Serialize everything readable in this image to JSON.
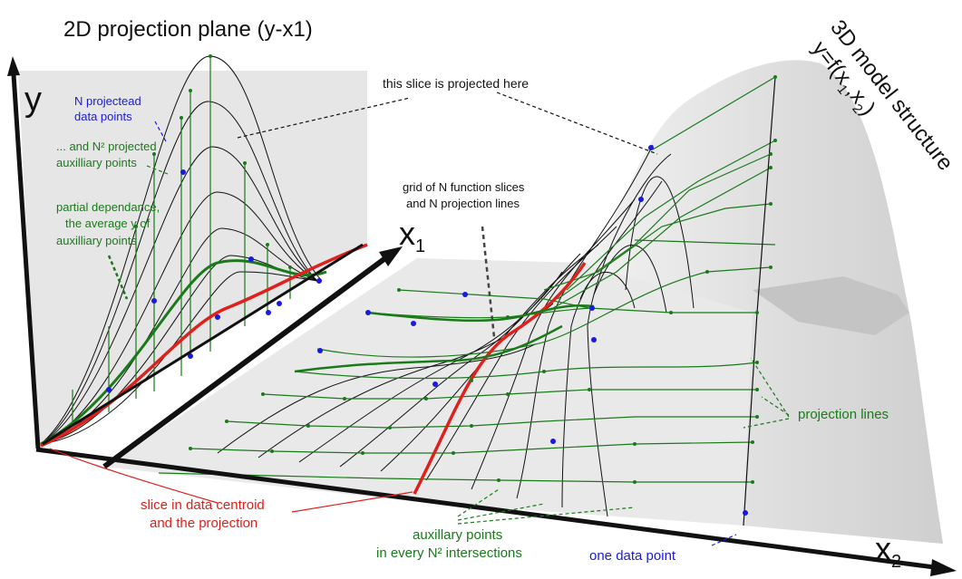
{
  "diagram": {
    "title_left": "2D projection plane (y-x1)",
    "title_right_line1": "3D model structure",
    "title_right_line2": "y=f(x₁,x₂)",
    "axis_y": "y",
    "axis_x1": "x",
    "axis_x1_sub": "1",
    "axis_x2": "x",
    "axis_x2_sub": "2",
    "notes": {
      "slice_projected": "this slice is projected here",
      "grid_line1": "grid of N function slices",
      "grid_line2": "and N projection lines",
      "n_points_line1": "N projectead",
      "n_points_line2": "data points",
      "aux_line1": "... and N² projected",
      "aux_line2": "auxilliary points",
      "pd_line1": "partial dependance,",
      "pd_line2": "the average y of",
      "pd_line3": "auxilliary points",
      "projection_lines": "projection lines",
      "slice_centroid_line1": "slice in data centroid",
      "slice_centroid_line2": "and the projection",
      "aux_every_line1": "auxillary points",
      "aux_every_line2": "in every N² intersections",
      "one_point": "one data point"
    },
    "colors": {
      "green": "#1a7a1a",
      "blue": "#1a1adc",
      "red": "#e0201c",
      "surface": "#dcdcdc",
      "plane": "#e4e4e4"
    }
  }
}
